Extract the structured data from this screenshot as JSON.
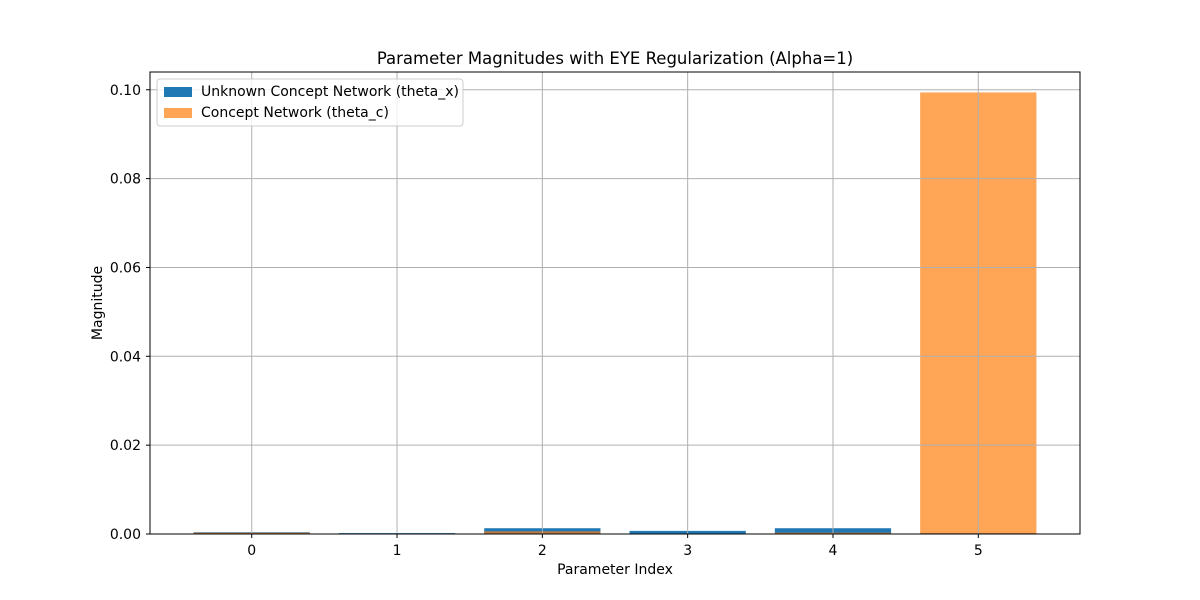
{
  "chart_data": {
    "type": "bar",
    "title": "Parameter Magnitudes with EYE Regularization (Alpha=1)",
    "xlabel": "Parameter Index",
    "ylabel": "Magnitude",
    "categories": [
      "0",
      "1",
      "2",
      "3",
      "4",
      "5"
    ],
    "ylim": [
      0,
      0.104
    ],
    "yticks": [
      0.0,
      0.02,
      0.04,
      0.06,
      0.08,
      0.1
    ],
    "ytick_labels": [
      "0.00",
      "0.02",
      "0.04",
      "0.06",
      "0.08",
      "0.10"
    ],
    "grid": true,
    "legend_position": "top-left",
    "series": [
      {
        "name": "Unknown Concept Network (theta_x)",
        "color": "#1f77b4",
        "opacity": 1.0,
        "values": [
          0.0004,
          0.0002,
          0.0013,
          0.0007,
          0.0013,
          0.0002
        ]
      },
      {
        "name": "Concept Network (theta_c)",
        "color": "#ff7f0e",
        "opacity": 0.7,
        "values": [
          0.0003,
          0.0001,
          0.0006,
          0.0001,
          0.0003,
          0.0994
        ]
      }
    ]
  }
}
